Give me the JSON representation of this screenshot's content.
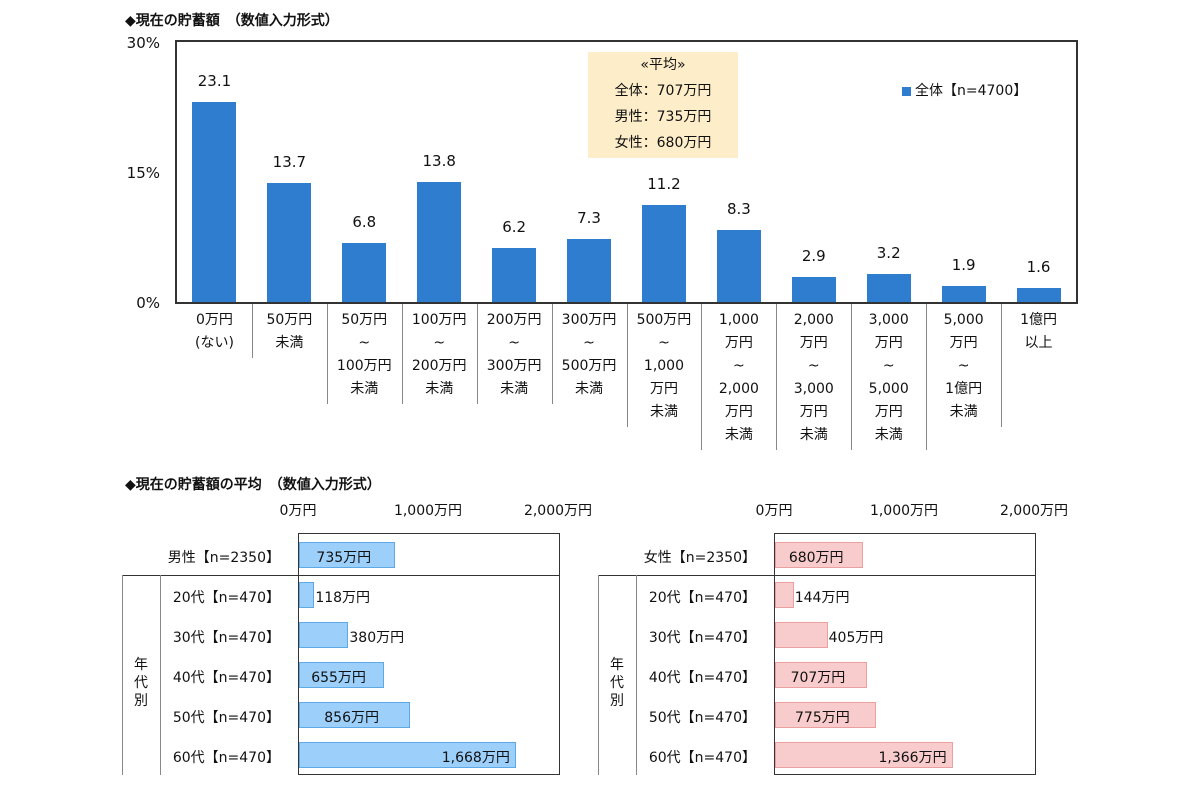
{
  "chart_data": [
    {
      "type": "bar",
      "title": "◆現在の貯蓄額　（数値入力形式）",
      "yticks": [
        "30%",
        "15%",
        "0%"
      ],
      "ylim": [
        0,
        30
      ],
      "categories": [
        [
          "0万円",
          "(ない)"
        ],
        [
          "50万円",
          "未満"
        ],
        [
          "50万円",
          "~",
          "100万円",
          "未満"
        ],
        [
          "100万円",
          "~",
          "200万円",
          "未満"
        ],
        [
          "200万円",
          "~",
          "300万円",
          "未満"
        ],
        [
          "300万円",
          "~",
          "500万円",
          "未満"
        ],
        [
          "500万円",
          "~",
          "1,000",
          "万円",
          "未満"
        ],
        [
          "1,000",
          "万円",
          "~",
          "2,000",
          "万円",
          "未満"
        ],
        [
          "2,000",
          "万円",
          "~",
          "3,000",
          "万円",
          "未満"
        ],
        [
          "3,000",
          "万円",
          "~",
          "5,000",
          "万円",
          "未満"
        ],
        [
          "5,000",
          "万円",
          "~",
          "1億円",
          "未満"
        ],
        [
          "1億円",
          "以上"
        ]
      ],
      "series": [
        {
          "name": "全体【n=4700】",
          "values": [
            23.1,
            13.7,
            6.8,
            13.8,
            6.2,
            7.3,
            11.2,
            8.3,
            2.9,
            3.2,
            1.9,
            1.6
          ]
        }
      ],
      "value_labels": [
        "23.1",
        "13.7",
        "6.8",
        "13.8",
        "6.2",
        "7.3",
        "11.2",
        "8.3",
        "2.9",
        "3.2",
        "1.9",
        "1.6"
      ],
      "annotation": [
        "«平均»",
        "全体：707万円",
        "男性：735万円",
        "女性：680万円"
      ],
      "legend_position": "top-right",
      "color": "#2f7dcf"
    },
    {
      "type": "bar",
      "orientation": "horizontal",
      "title": "◆現在の貯蓄額の平均　（数値入力形式）",
      "axis_ticks": [
        "0万円",
        "1,000万円",
        "2,000万円"
      ],
      "xlim": [
        0,
        2000
      ],
      "categories": [
        "男性【n=2350】",
        "20代【n=470】",
        "30代【n=470】",
        "40代【n=470】",
        "50代【n=470】",
        "60代【n=470】"
      ],
      "group_label": "年代別",
      "values": [
        735,
        118,
        380,
        655,
        856,
        1668
      ],
      "value_labels": [
        "735万円",
        "118万円",
        "380万円",
        "655万円",
        "856万円",
        "1,668万円"
      ],
      "color": "#9ccffa"
    },
    {
      "type": "bar",
      "orientation": "horizontal",
      "axis_ticks": [
        "0万円",
        "1,000万円",
        "2,000万円"
      ],
      "xlim": [
        0,
        2000
      ],
      "categories": [
        "女性【n=2350】",
        "20代【n=470】",
        "30代【n=470】",
        "40代【n=470】",
        "50代【n=470】",
        "60代【n=470】"
      ],
      "group_label": "年代別",
      "values": [
        680,
        144,
        405,
        707,
        775,
        1366
      ],
      "value_labels": [
        "680万円",
        "144万円",
        "405万円",
        "707万円",
        "775万円",
        "1,366万円"
      ],
      "color": "#f8cccc"
    }
  ]
}
